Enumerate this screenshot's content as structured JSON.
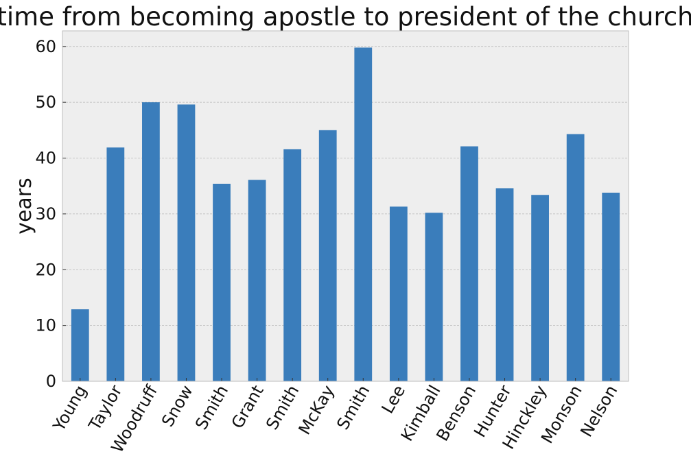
{
  "chart_data": {
    "type": "bar",
    "title": "time from becoming apostle to president of the church",
    "xlabel": "",
    "ylabel": "years",
    "categories": [
      "Young",
      "Taylor",
      "Woodruff",
      "Snow",
      "Smith",
      "Grant",
      "Smith",
      "McKay",
      "Smith",
      "Lee",
      "Kimball",
      "Benson",
      "Hunter",
      "Hinckley",
      "Monson",
      "Nelson"
    ],
    "values": [
      12.9,
      41.9,
      50.0,
      49.6,
      35.4,
      36.1,
      41.6,
      45.0,
      59.8,
      31.3,
      30.2,
      42.1,
      34.6,
      33.4,
      44.3,
      33.8
    ],
    "ylim": [
      0,
      62.8
    ],
    "yticks": [
      "0",
      "10",
      "20",
      "30",
      "40",
      "50",
      "60"
    ],
    "grid": true,
    "legend": "none",
    "colors": {
      "bar": "#3a7dbb",
      "plot_background": "#eeeeee",
      "grid": "#b8b8b8",
      "frame": "#bcbcbc"
    }
  }
}
